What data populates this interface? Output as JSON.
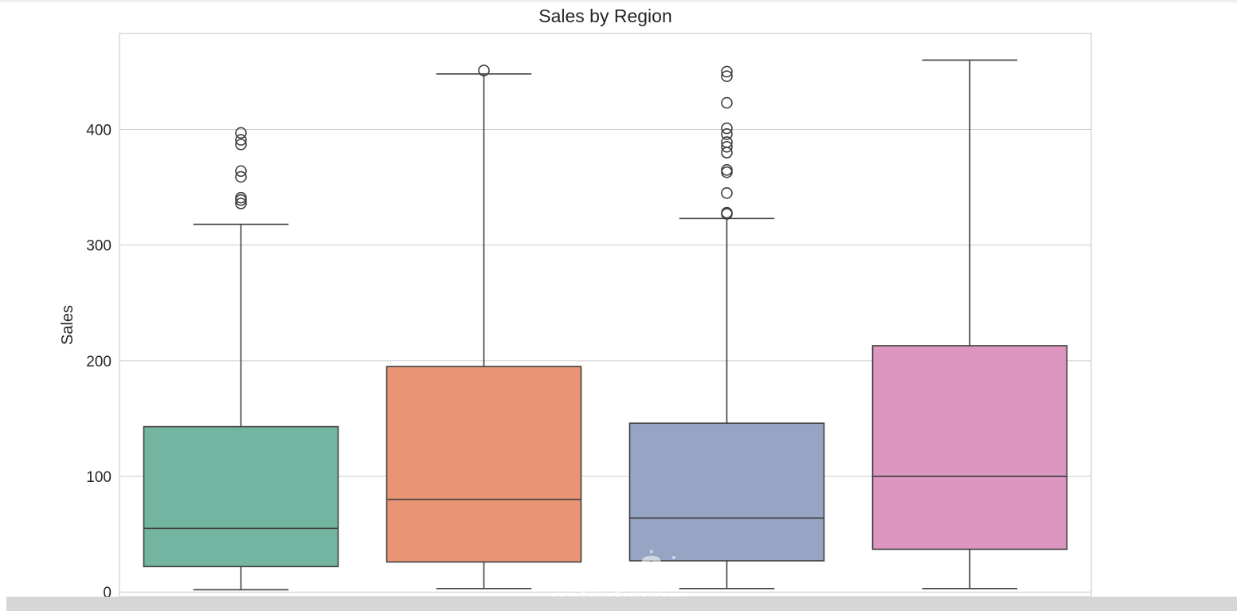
{
  "chart_data": {
    "type": "box",
    "title": "Sales by Region",
    "xlabel": "",
    "ylabel": "Sales",
    "ylim": [
      -4,
      483
    ],
    "yticks": [
      0,
      100,
      200,
      300,
      400
    ],
    "grid": true,
    "boxes": [
      {
        "color": "#73b5a0",
        "whisker_low": 2,
        "q1": 22,
        "median": 55,
        "q3": 143,
        "whisker_high": 318,
        "outliers": [
          336,
          339,
          341,
          359,
          364,
          387,
          391,
          397
        ]
      },
      {
        "color": "#e99575",
        "whisker_low": 3,
        "q1": 26,
        "median": 80,
        "q3": 195,
        "whisker_high": 448,
        "outliers": [
          451
        ]
      },
      {
        "color": "#96a5c4",
        "whisker_low": 3,
        "q1": 27,
        "median": 64,
        "q3": 146,
        "whisker_high": 323,
        "outliers": [
          327,
          328,
          345,
          363,
          365,
          380,
          385,
          389,
          396,
          401,
          423,
          446,
          450
        ]
      },
      {
        "color": "#dc96c0",
        "whisker_low": 3,
        "q1": 37,
        "median": 100,
        "q3": 213,
        "whisker_high": 460,
        "outliers": []
      }
    ]
  },
  "watermark": {
    "arabic": "نفذلي",
    "latin": "nafezly.com"
  }
}
